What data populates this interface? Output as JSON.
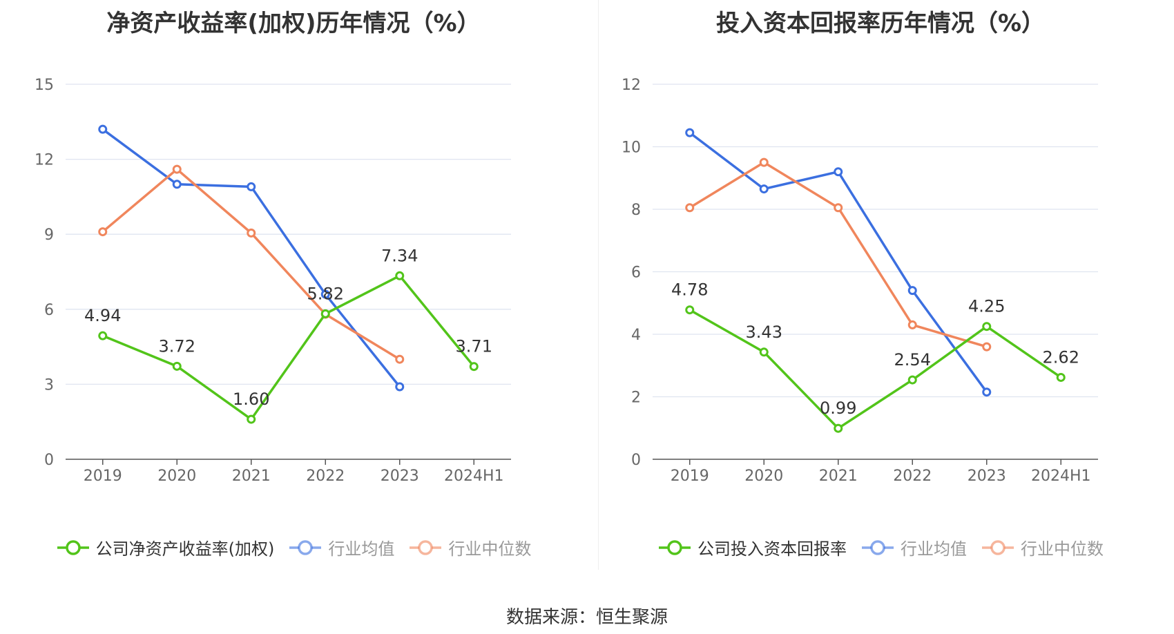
{
  "charts": [
    {
      "title": "净资产收益率(加权)历年情况（%）",
      "legend": [
        {
          "label": "公司净资产收益率(加权)",
          "color": "#52c41a",
          "active": true
        },
        {
          "label": "行业均值",
          "color": "#3b6fe0",
          "active": false
        },
        {
          "label": "行业中位数",
          "color": "#f0865c",
          "active": false
        }
      ]
    },
    {
      "title": "投入资本回报率历年情况（%）",
      "legend": [
        {
          "label": "公司投入资本回报率",
          "color": "#52c41a",
          "active": true
        },
        {
          "label": "行业均值",
          "color": "#3b6fe0",
          "active": false
        },
        {
          "label": "行业中位数",
          "color": "#f0865c",
          "active": false
        }
      ]
    }
  ],
  "source": "数据来源：恒生聚源",
  "chart_data": [
    {
      "type": "line",
      "title": "净资产收益率(加权)历年情况（%）",
      "categories": [
        "2019",
        "2020",
        "2021",
        "2022",
        "2023",
        "2024H1"
      ],
      "yticks": [
        0,
        3,
        6,
        9,
        12,
        15
      ],
      "ylim": [
        0,
        15
      ],
      "grid": true,
      "legend_position": "bottom",
      "series": [
        {
          "name": "公司净资产收益率(加权)",
          "color": "#52c41a",
          "values": [
            4.94,
            3.72,
            1.6,
            5.82,
            7.34,
            3.71
          ],
          "labels": [
            "4.94",
            "3.72",
            "1.60",
            "5.82",
            "7.34",
            "3.71"
          ]
        },
        {
          "name": "行业均值",
          "color": "#3b6fe0",
          "values": [
            13.2,
            11.0,
            10.9,
            6.6,
            2.9,
            null
          ]
        },
        {
          "name": "行业中位数",
          "color": "#f0865c",
          "values": [
            9.1,
            11.6,
            9.05,
            5.8,
            4.0,
            null
          ]
        }
      ]
    },
    {
      "type": "line",
      "title": "投入资本回报率历年情况（%）",
      "categories": [
        "2019",
        "2020",
        "2021",
        "2022",
        "2023",
        "2024H1"
      ],
      "yticks": [
        0,
        2,
        4,
        6,
        8,
        10,
        12
      ],
      "ylim": [
        0,
        12
      ],
      "grid": true,
      "legend_position": "bottom",
      "series": [
        {
          "name": "公司投入资本回报率",
          "color": "#52c41a",
          "values": [
            4.78,
            3.43,
            0.99,
            2.54,
            4.25,
            2.62
          ],
          "labels": [
            "4.78",
            "3.43",
            "0.99",
            "2.54",
            "4.25",
            "2.62"
          ]
        },
        {
          "name": "行业均值",
          "color": "#3b6fe0",
          "values": [
            10.45,
            8.65,
            9.2,
            5.4,
            2.15,
            null
          ]
        },
        {
          "name": "行业中位数",
          "color": "#f0865c",
          "values": [
            8.05,
            9.5,
            8.05,
            4.3,
            3.6,
            null
          ]
        }
      ]
    }
  ]
}
